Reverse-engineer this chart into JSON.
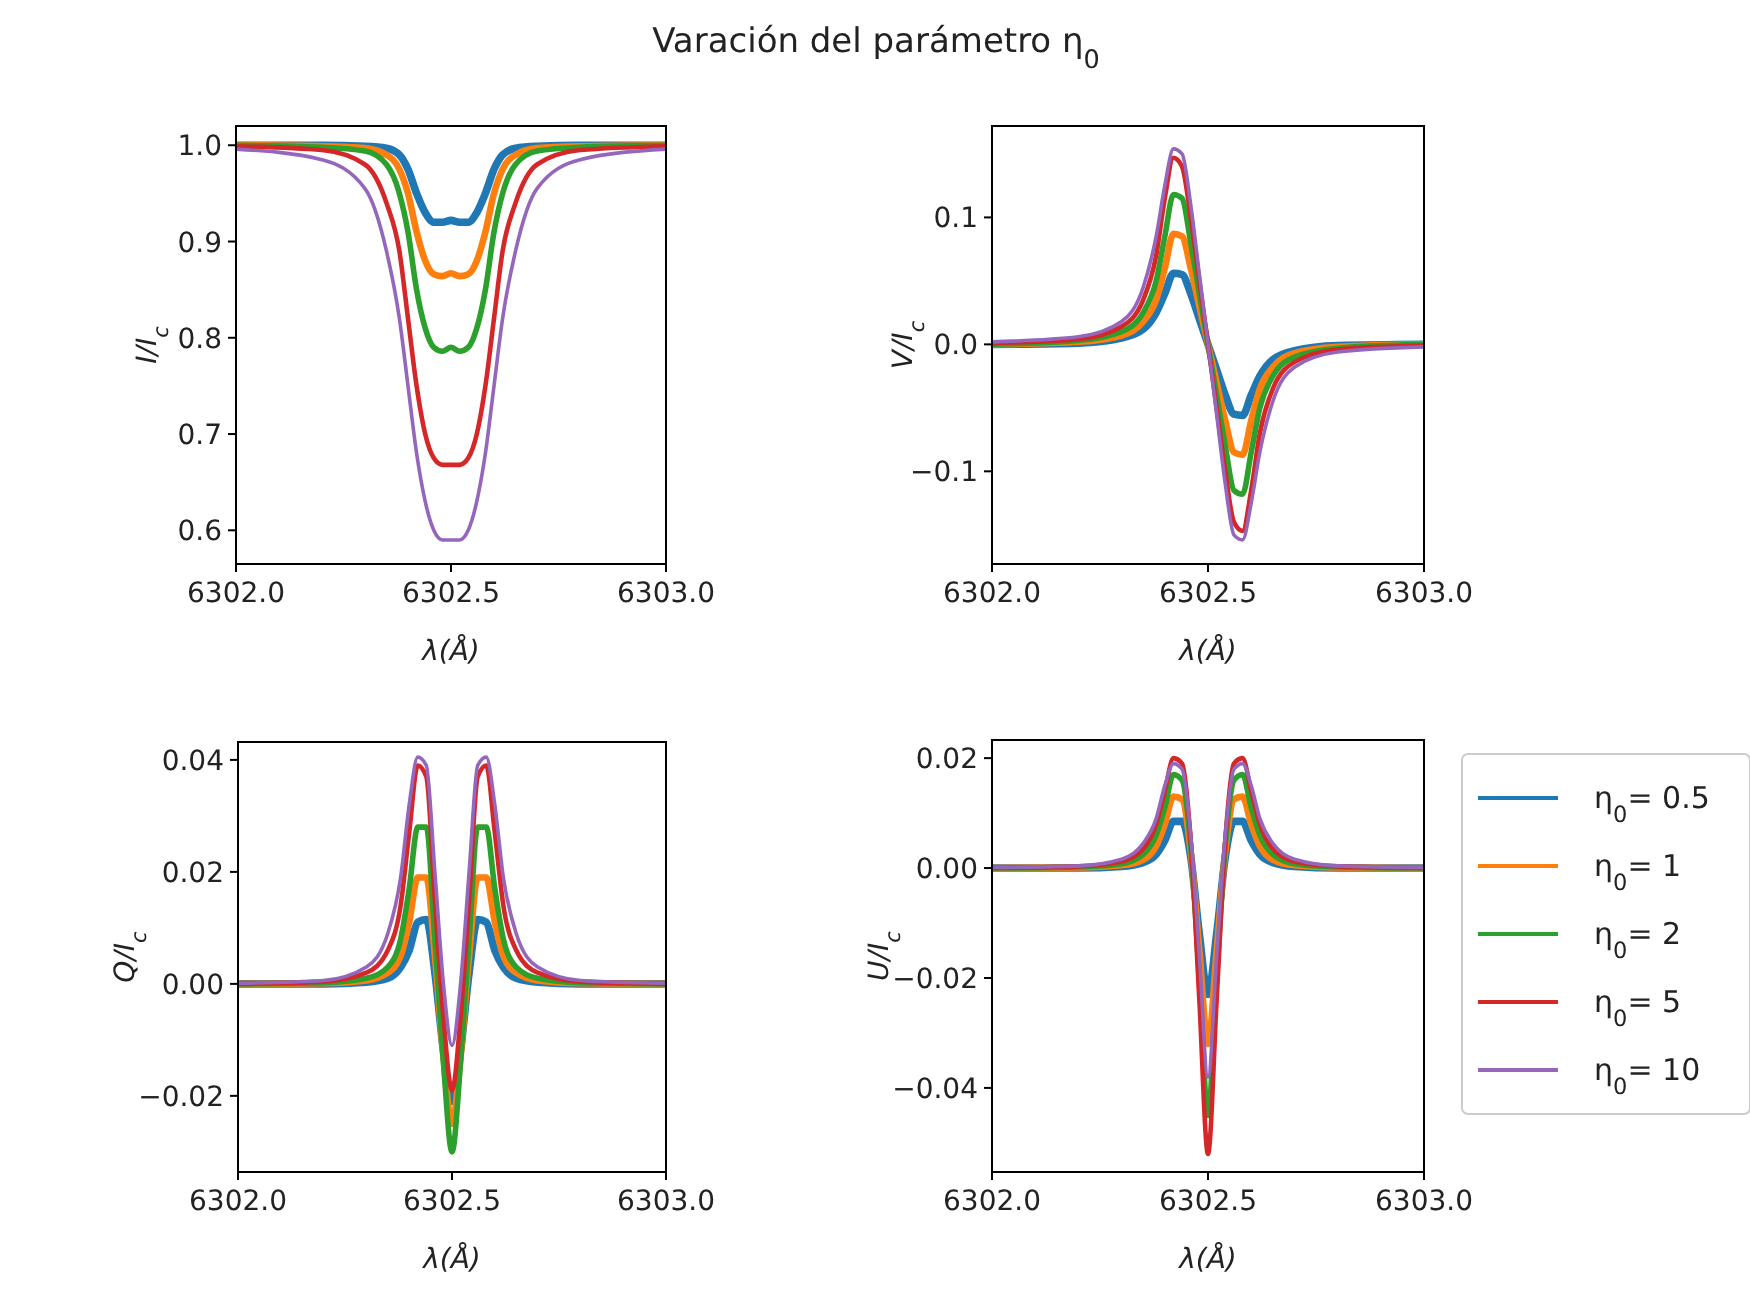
{
  "chart_data": [
    {
      "type": "line",
      "title": "Varación del parámetro η$_{0}$",
      "xlabel": "λ(Å)",
      "ylabel": "I/I$_{c}$",
      "x": [
        6302.0,
        6302.2,
        6302.3,
        6302.35,
        6302.38,
        6302.4,
        6302.42,
        6302.44,
        6302.46,
        6302.48,
        6302.5,
        6302.52,
        6302.54,
        6302.56,
        6302.58,
        6302.6,
        6302.62,
        6302.65,
        6302.7,
        6302.8,
        6303.0
      ],
      "xlim": [
        6302.0,
        6303.0
      ],
      "xticks": [
        {
          "value": 6302.0,
          "label": "6302.0"
        },
        {
          "value": 6302.5,
          "label": "6302.5"
        },
        {
          "value": 6303.0,
          "label": "6303.0"
        }
      ],
      "ylim": [
        0.565,
        1.02
      ],
      "yticks": [
        {
          "value": 0.6,
          "label": "0.6"
        },
        {
          "value": 0.7,
          "label": "0.7"
        },
        {
          "value": 0.8,
          "label": "0.8"
        },
        {
          "value": 0.9,
          "label": "0.9"
        },
        {
          "value": 1.0,
          "label": "1.0"
        }
      ],
      "series": [
        {
          "color": "#1f77b4",
          "values": [
            1.0,
            1.0,
            0.999,
            0.997,
            0.99,
            0.975,
            0.95,
            0.93,
            0.92,
            0.92,
            0.922,
            0.92,
            0.92,
            0.93,
            0.95,
            0.975,
            0.99,
            0.997,
            0.999,
            1.0,
            1.0
          ]
        },
        {
          "color": "#ff7f0e",
          "values": [
            1.0,
            0.999,
            0.997,
            0.99,
            0.975,
            0.95,
            0.91,
            0.88,
            0.866,
            0.864,
            0.867,
            0.864,
            0.866,
            0.88,
            0.91,
            0.95,
            0.975,
            0.99,
            0.997,
            0.999,
            1.0
          ]
        },
        {
          "color": "#2ca02c",
          "values": [
            1.0,
            0.998,
            0.994,
            0.98,
            0.95,
            0.91,
            0.85,
            0.81,
            0.79,
            0.786,
            0.79,
            0.786,
            0.79,
            0.81,
            0.85,
            0.91,
            0.95,
            0.98,
            0.994,
            0.998,
            1.0
          ]
        },
        {
          "color": "#d62728",
          "values": [
            0.999,
            0.995,
            0.98,
            0.94,
            0.89,
            0.82,
            0.75,
            0.7,
            0.675,
            0.668,
            0.668,
            0.668,
            0.675,
            0.7,
            0.75,
            0.82,
            0.89,
            0.94,
            0.98,
            0.995,
            0.999
          ]
        },
        {
          "color": "#9467bd",
          "values": [
            0.996,
            0.985,
            0.955,
            0.89,
            0.82,
            0.75,
            0.68,
            0.63,
            0.6,
            0.59,
            0.59,
            0.59,
            0.6,
            0.63,
            0.68,
            0.75,
            0.82,
            0.89,
            0.955,
            0.985,
            0.996
          ]
        }
      ]
    },
    {
      "type": "line",
      "xlabel": "λ(Å)",
      "ylabel": "V/I$_{c}$",
      "x": [
        6302.0,
        6302.2,
        6302.3,
        6302.35,
        6302.38,
        6302.4,
        6302.42,
        6302.44,
        6302.46,
        6302.48,
        6302.5,
        6302.52,
        6302.54,
        6302.56,
        6302.58,
        6302.6,
        6302.62,
        6302.65,
        6302.7,
        6302.8,
        6303.0
      ],
      "xlim": [
        6302.0,
        6303.0
      ],
      "xticks": [
        {
          "value": 6302.0,
          "label": "6302.0"
        },
        {
          "value": 6302.5,
          "label": "6302.5"
        },
        {
          "value": 6303.0,
          "label": "6303.0"
        }
      ],
      "ylim": [
        -0.173,
        0.172
      ],
      "yticks": [
        {
          "value": -0.1,
          "label": "−0.1"
        },
        {
          "value": 0,
          "label": "0.0"
        },
        {
          "value": 0.1,
          "label": "0.1"
        }
      ],
      "series": [
        {
          "color": "#1f77b4",
          "values": [
            0,
            0.001,
            0.005,
            0.012,
            0.025,
            0.04,
            0.056,
            0.055,
            0.04,
            0.02,
            0,
            -0.02,
            -0.04,
            -0.055,
            -0.056,
            -0.04,
            -0.025,
            -0.012,
            -0.005,
            -0.001,
            0
          ]
        },
        {
          "color": "#ff7f0e",
          "values": [
            0,
            0.002,
            0.007,
            0.018,
            0.035,
            0.06,
            0.087,
            0.085,
            0.06,
            0.03,
            0,
            -0.03,
            -0.06,
            -0.085,
            -0.087,
            -0.06,
            -0.035,
            -0.018,
            -0.007,
            -0.002,
            0
          ]
        },
        {
          "color": "#2ca02c",
          "values": [
            0,
            0.003,
            0.01,
            0.025,
            0.05,
            0.085,
            0.118,
            0.115,
            0.08,
            0.04,
            0,
            -0.04,
            -0.08,
            -0.115,
            -0.118,
            -0.085,
            -0.05,
            -0.025,
            -0.01,
            -0.003,
            0
          ]
        },
        {
          "color": "#d62728",
          "values": [
            0.001,
            0.004,
            0.014,
            0.035,
            0.07,
            0.115,
            0.147,
            0.14,
            0.1,
            0.05,
            0,
            -0.05,
            -0.1,
            -0.14,
            -0.147,
            -0.115,
            -0.07,
            -0.035,
            -0.014,
            -0.004,
            -0.001
          ]
        },
        {
          "color": "#9467bd",
          "values": [
            0.002,
            0.006,
            0.018,
            0.045,
            0.085,
            0.125,
            0.154,
            0.15,
            0.11,
            0.055,
            0,
            -0.055,
            -0.11,
            -0.15,
            -0.154,
            -0.125,
            -0.085,
            -0.045,
            -0.018,
            -0.006,
            -0.002
          ]
        }
      ]
    },
    {
      "type": "line",
      "xlabel": "λ(Å)",
      "ylabel": "Q/I$_{c}$",
      "x": [
        6302.0,
        6302.2,
        6302.3,
        6302.35,
        6302.38,
        6302.4,
        6302.42,
        6302.44,
        6302.46,
        6302.48,
        6302.5,
        6302.52,
        6302.54,
        6302.56,
        6302.58,
        6302.6,
        6302.62,
        6302.65,
        6302.7,
        6302.8,
        6303.0
      ],
      "xlim": [
        6302.0,
        6303.0
      ],
      "xticks": [
        {
          "value": 6302.0,
          "label": "6302.0"
        },
        {
          "value": 6302.5,
          "label": "6302.5"
        },
        {
          "value": 6303.0,
          "label": "6303.0"
        }
      ],
      "ylim": [
        -0.0336,
        0.0432
      ],
      "yticks": [
        {
          "value": -0.02,
          "label": "−0.02"
        },
        {
          "value": 0,
          "label": "0.00"
        },
        {
          "value": 0.02,
          "label": "0.02"
        },
        {
          "value": 0.04,
          "label": "0.04"
        }
      ],
      "series": [
        {
          "color": "#1f77b4",
          "values": [
            0,
            0,
            0.0003,
            0.001,
            0.003,
            0.006,
            0.011,
            0.0115,
            0.002,
            -0.012,
            -0.021,
            -0.012,
            0.002,
            0.0115,
            0.011,
            0.006,
            0.003,
            0.001,
            0.0003,
            0,
            0
          ]
        },
        {
          "color": "#ff7f0e",
          "values": [
            0,
            0.0001,
            0.0006,
            0.002,
            0.005,
            0.011,
            0.019,
            0.019,
            0.005,
            -0.013,
            -0.025,
            -0.013,
            0.005,
            0.019,
            0.019,
            0.011,
            0.005,
            0.002,
            0.0006,
            0.0001,
            0
          ]
        },
        {
          "color": "#2ca02c",
          "values": [
            0,
            0.0002,
            0.001,
            0.003,
            0.008,
            0.017,
            0.028,
            0.028,
            0.008,
            -0.014,
            -0.03,
            -0.014,
            0.008,
            0.028,
            0.028,
            0.017,
            0.008,
            0.003,
            0.001,
            0.0002,
            0
          ]
        },
        {
          "color": "#d62728",
          "values": [
            0,
            0.0004,
            0.002,
            0.006,
            0.014,
            0.027,
            0.039,
            0.037,
            0.015,
            -0.006,
            -0.019,
            -0.006,
            0.015,
            0.037,
            0.039,
            0.027,
            0.014,
            0.006,
            0.002,
            0.0004,
            0
          ]
        },
        {
          "color": "#9467bd",
          "values": [
            0.0001,
            0.0006,
            0.003,
            0.009,
            0.019,
            0.032,
            0.0405,
            0.039,
            0.02,
            0,
            -0.011,
            0,
            0.02,
            0.039,
            0.0405,
            0.032,
            0.019,
            0.009,
            0.003,
            0.0006,
            0.0001
          ]
        }
      ]
    },
    {
      "type": "line",
      "xlabel": "λ(Å)",
      "ylabel": "U/I$_{c}$",
      "legend": "right",
      "x": [
        6302.0,
        6302.2,
        6302.3,
        6302.35,
        6302.38,
        6302.4,
        6302.42,
        6302.44,
        6302.46,
        6302.48,
        6302.5,
        6302.52,
        6302.54,
        6302.56,
        6302.58,
        6302.6,
        6302.62,
        6302.65,
        6302.7,
        6302.8,
        6303.0
      ],
      "xlim": [
        6302.0,
        6303.0
      ],
      "xticks": [
        {
          "value": 6302.0,
          "label": "6302.0"
        },
        {
          "value": 6302.5,
          "label": "6302.5"
        },
        {
          "value": 6303.0,
          "label": "6303.0"
        }
      ],
      "ylim": [
        -0.0553,
        0.0233
      ],
      "yticks": [
        {
          "value": -0.04,
          "label": "−0.04"
        },
        {
          "value": -0.02,
          "label": "−0.02"
        },
        {
          "value": 0,
          "label": "0.00"
        },
        {
          "value": 0.02,
          "label": "0.02"
        }
      ],
      "series": [
        {
          "name": "η$_{0}$= 0.5",
          "color": "#1f77b4",
          "values": [
            0,
            0,
            0.0003,
            0.001,
            0.0025,
            0.005,
            0.0085,
            0.0085,
            0.002,
            -0.012,
            -0.023,
            -0.012,
            0.002,
            0.0085,
            0.0085,
            0.005,
            0.0025,
            0.001,
            0.0003,
            0,
            0
          ]
        },
        {
          "name": "η$_{0}$= 1",
          "color": "#ff7f0e",
          "values": [
            0,
            0.0001,
            0.0005,
            0.0015,
            0.004,
            0.008,
            0.013,
            0.0125,
            0.003,
            -0.015,
            -0.032,
            -0.015,
            0.003,
            0.0125,
            0.013,
            0.008,
            0.004,
            0.0015,
            0.0005,
            0.0001,
            0
          ]
        },
        {
          "name": "η$_{0}$= 2",
          "color": "#2ca02c",
          "values": [
            0,
            0.0002,
            0.0008,
            0.0025,
            0.006,
            0.011,
            0.017,
            0.016,
            0.004,
            -0.02,
            -0.045,
            -0.02,
            0.004,
            0.016,
            0.017,
            0.011,
            0.006,
            0.0025,
            0.0008,
            0.0002,
            0
          ]
        },
        {
          "name": "η$_{0}$= 5",
          "color": "#d62728",
          "values": [
            0,
            0.0003,
            0.0012,
            0.0035,
            0.008,
            0.014,
            0.02,
            0.019,
            0.005,
            -0.024,
            -0.052,
            -0.024,
            0.005,
            0.019,
            0.02,
            0.014,
            0.008,
            0.0035,
            0.0012,
            0.0003,
            0
          ]
        },
        {
          "name": "η$_{0}$= 10",
          "color": "#9467bd",
          "values": [
            0.0001,
            0.0004,
            0.0016,
            0.0045,
            0.009,
            0.015,
            0.019,
            0.018,
            0.006,
            -0.016,
            -0.038,
            -0.016,
            0.006,
            0.018,
            0.019,
            0.015,
            0.009,
            0.0045,
            0.0016,
            0.0004,
            0.0001
          ]
        }
      ]
    }
  ]
}
